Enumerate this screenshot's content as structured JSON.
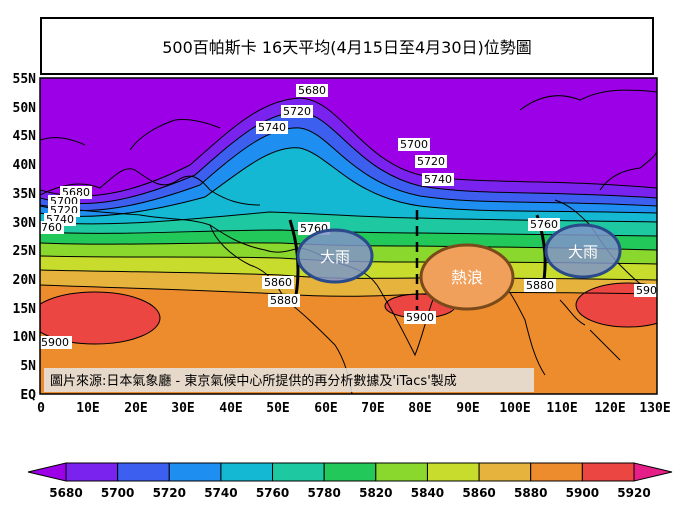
{
  "title": "500百帕斯卡 16天平均(4月15日至4月30日)位勢圖",
  "map": {
    "lat_labels": [
      "55N",
      "50N",
      "45N",
      "40N",
      "35N",
      "30N",
      "25N",
      "20N",
      "15N",
      "10N",
      "5N",
      "EQ"
    ],
    "lon_labels": [
      "0",
      "10E",
      "20E",
      "30E",
      "40E",
      "50E",
      "60E",
      "70E",
      "80E",
      "90E",
      "100E",
      "110E",
      "120E",
      "130E"
    ],
    "contour_labels": {
      "c5680": "5680",
      "c5700": "5700",
      "c5720": "5720",
      "c5740": "5740",
      "c5760": "5760",
      "c5880": "5880",
      "c5900": "5900",
      "w5680": "5680",
      "w5700": "5700",
      "w5720": "5720",
      "w5740": "5740",
      "w5760": "760",
      "m5760": "5760",
      "m5860": "5860",
      "m5880": "5880",
      "e5760": "5760",
      "e5880": "5880",
      "sw5900": "5900",
      "se5900": "590"
    },
    "annotations": {
      "heavy_rain_west": "大雨",
      "heat_wave": "熱浪",
      "heavy_rain_east": "大雨"
    },
    "source_note": "圖片來源:日本氣象廳 - 東京氣候中心所提供的再分析數據及'iTacs'製成"
  },
  "colorbar": {
    "ticks": [
      "5680",
      "5700",
      "5720",
      "5740",
      "5760",
      "5780",
      "5820",
      "5840",
      "5860",
      "5880",
      "5900",
      "5920"
    ],
    "colors": [
      "#9b00e6",
      "#7a22ee",
      "#3c5ff0",
      "#1e8ff0",
      "#14b8d2",
      "#1ec8a0",
      "#23c85a",
      "#8ad72d",
      "#c8dc2d",
      "#e6b43c",
      "#ec8c2d",
      "#eb4641",
      "#e61e87"
    ]
  }
}
